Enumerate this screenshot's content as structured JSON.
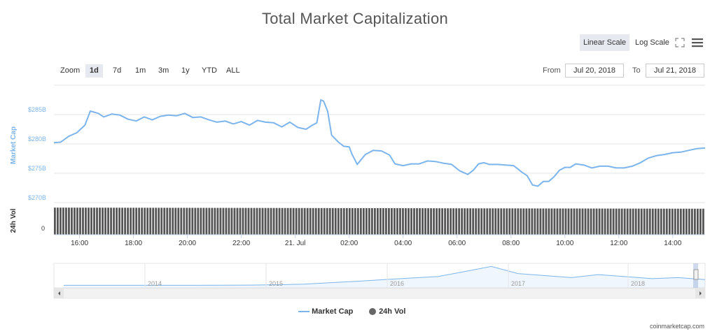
{
  "title": "Total Market Capitalization",
  "scale_buttons": {
    "linear": "Linear Scale",
    "log": "Log Scale"
  },
  "zoom": {
    "label": "Zoom",
    "options": [
      "1d",
      "7d",
      "1m",
      "3m",
      "1y",
      "YTD",
      "ALL"
    ],
    "active": "1d"
  },
  "range": {
    "from_label": "From",
    "from_value": "Jul 20, 2018",
    "to_label": "To",
    "to_value": "Jul 21, 2018"
  },
  "legend": [
    {
      "name": "Market Cap",
      "color": "#7cb5ec",
      "marker": "line"
    },
    {
      "name": "24h Vol",
      "color": "#555555",
      "marker": "circle"
    }
  ],
  "credit": "coinmarketcap.com",
  "colors": {
    "line": "#7cb5ec",
    "volume": "#555555",
    "axis_label": "#7cb5ec",
    "grid": "#e6e6e6"
  },
  "chart_data": {
    "type": "line",
    "main": {
      "ylabel": "Market Cap",
      "y_ticks": [
        "$270B",
        "$275B",
        "$280B",
        "$285B"
      ],
      "ylim": [
        270,
        290
      ],
      "x_ticks": [
        "16:00",
        "18:00",
        "20:00",
        "22:00",
        "21. Jul",
        "02:00",
        "04:00",
        "06:00",
        "08:00",
        "10:00",
        "12:00",
        "14:00"
      ],
      "x_tick_hours": [
        16,
        18,
        20,
        22,
        24,
        26,
        28,
        30,
        32,
        34,
        36,
        38
      ],
      "xlim_hours": [
        15.05,
        39.2
      ],
      "series": [
        {
          "name": "Market Cap",
          "x_hours": [
            15.05,
            15.3,
            15.6,
            15.9,
            16.2,
            16.4,
            16.7,
            16.9,
            17.2,
            17.5,
            17.8,
            18.1,
            18.4,
            18.7,
            19.0,
            19.3,
            19.6,
            19.9,
            20.2,
            20.5,
            20.8,
            21.1,
            21.4,
            21.7,
            22.0,
            22.3,
            22.6,
            22.9,
            23.2,
            23.5,
            23.8,
            24.1,
            24.4,
            24.6,
            24.8,
            24.95,
            25.05,
            25.2,
            25.35,
            25.6,
            25.8,
            26.0,
            26.1,
            26.3,
            26.6,
            26.9,
            27.2,
            27.5,
            27.7,
            28.0,
            28.3,
            28.6,
            28.9,
            29.2,
            29.5,
            29.8,
            30.1,
            30.4,
            30.6,
            30.8,
            31.0,
            31.2,
            31.5,
            31.8,
            32.1,
            32.4,
            32.6,
            32.8,
            33.0,
            33.2,
            33.4,
            33.6,
            33.8,
            34.0,
            34.2,
            34.4,
            34.7,
            35.0,
            35.3,
            35.6,
            35.9,
            36.2,
            36.5,
            36.8,
            37.1,
            37.4,
            37.7,
            38.0,
            38.3,
            38.6,
            38.9,
            39.2
          ],
          "values": [
            280.2,
            280.3,
            281.3,
            281.9,
            283.2,
            285.6,
            285.2,
            284.6,
            285.1,
            284.9,
            284.2,
            283.9,
            284.6,
            284.1,
            284.7,
            284.9,
            284.8,
            285.2,
            284.5,
            284.6,
            284.1,
            283.7,
            283.9,
            283.4,
            283.8,
            283.2,
            284.0,
            283.7,
            283.6,
            282.9,
            283.7,
            282.8,
            282.5,
            283.1,
            283.6,
            287.5,
            287.3,
            285.6,
            281.5,
            280.3,
            279.6,
            279.5,
            278.3,
            276.5,
            278.2,
            278.9,
            278.8,
            278.1,
            276.6,
            276.3,
            276.6,
            276.6,
            277.1,
            277.0,
            276.7,
            276.5,
            275.4,
            274.8,
            275.5,
            276.6,
            276.8,
            276.5,
            276.5,
            276.4,
            276.3,
            275.2,
            274.6,
            273.0,
            272.8,
            273.6,
            273.6,
            274.4,
            275.5,
            276.0,
            276.0,
            276.6,
            276.4,
            275.9,
            276.2,
            276.2,
            275.9,
            275.9,
            276.2,
            276.8,
            277.6,
            278.0,
            278.2,
            278.5,
            278.6,
            278.9,
            279.2,
            279.3
          ]
        }
      ]
    },
    "volume": {
      "ylabel": "24h Vol",
      "y_ticks": [
        "0"
      ],
      "bars": 232,
      "relative_level": [
        0.97,
        0.93
      ]
    },
    "navigator": {
      "x_ticks": [
        "2014",
        "2015",
        "2016",
        "2017",
        "2018"
      ],
      "series_shape": [
        0.02,
        0.02,
        0.02,
        0.02,
        0.02,
        0.02,
        0.025,
        0.03,
        0.05,
        0.08,
        0.15,
        0.22,
        0.3,
        0.38,
        0.45,
        0.7,
        0.95,
        0.6,
        0.5,
        0.4,
        0.55,
        0.45,
        0.35,
        0.4,
        0.3
      ]
    }
  }
}
